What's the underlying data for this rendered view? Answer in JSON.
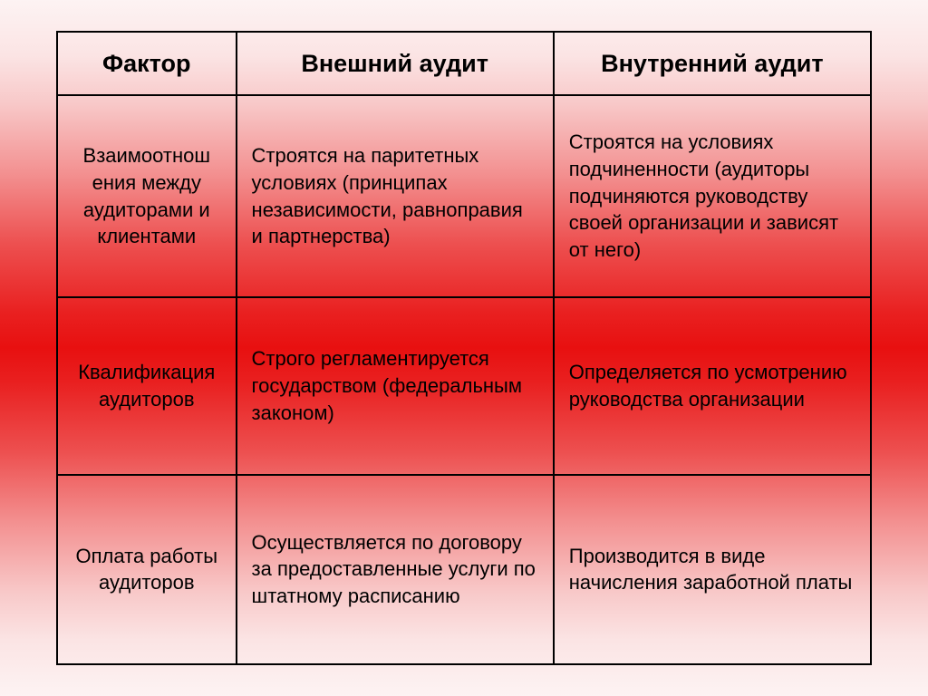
{
  "table": {
    "headers": [
      "Фактор",
      "Внешний аудит",
      "Внутренний аудит"
    ],
    "rows": [
      {
        "factor": "Взаимоотнош ения между аудиторами и клиентами",
        "external": "Строятся на паритетных условиях (принципах независимости, равноправия и партнерства)",
        "internal": "Строятся на условиях подчиненности (аудиторы подчиняются руководству своей организации и зависят от него)"
      },
      {
        "factor": "Квалификация аудиторов",
        "external": "Строго регламентируется государством (федеральным законом)",
        "internal": "Определяется по усмотрению руководства организации"
      },
      {
        "factor": "Оплата работы аудиторов",
        "external": "Осуществляется по договору за предоставленные услуги по штатному расписанию",
        "internal": "Производится в виде начисления заработной платы"
      }
    ]
  }
}
